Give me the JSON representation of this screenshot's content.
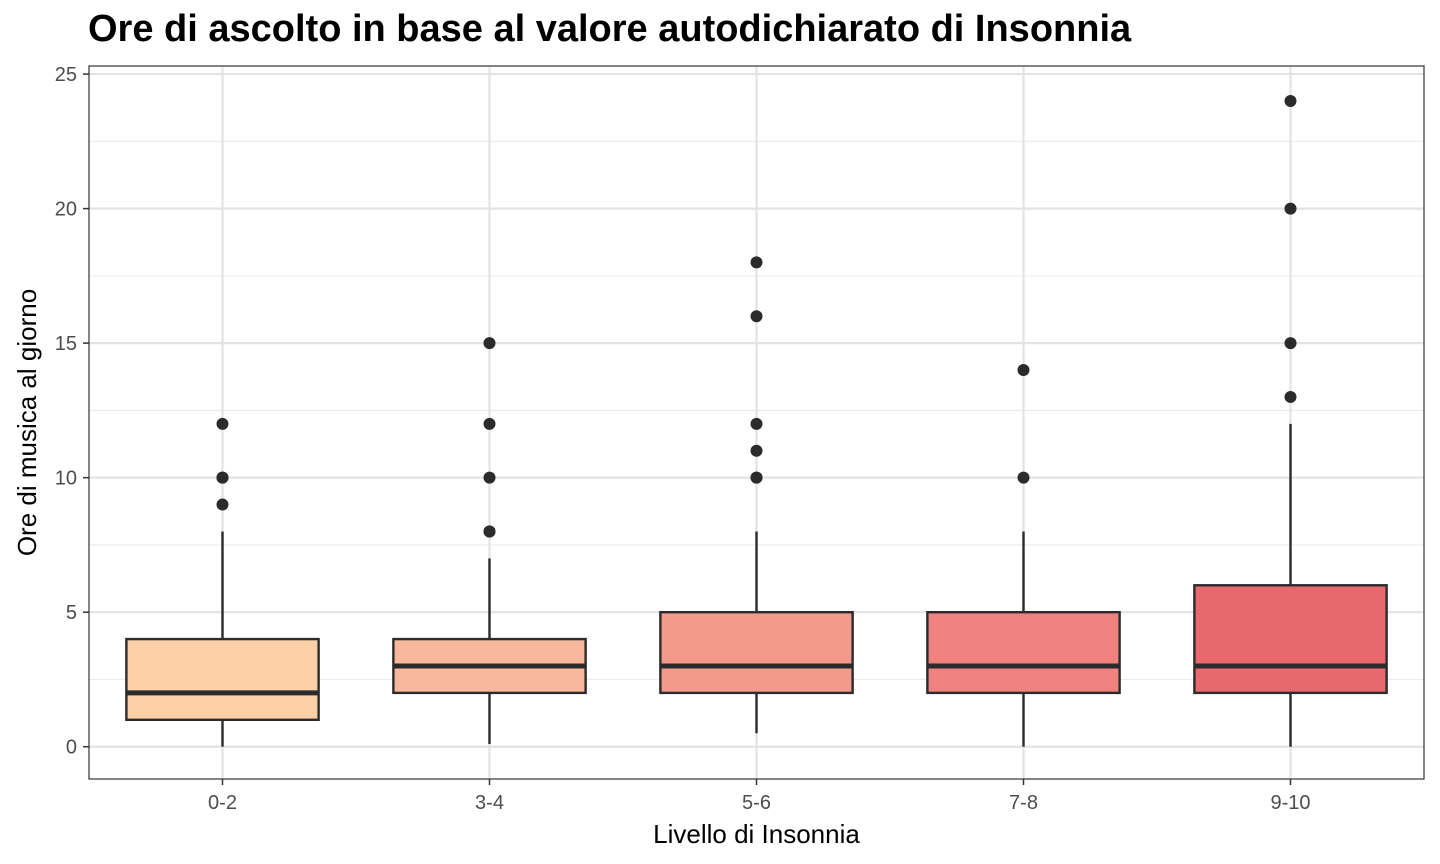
{
  "chart_data": {
    "type": "boxplot",
    "title": "Ore di ascolto in base al valore autodichiarato di Insonnia",
    "xlabel": "Livello di Insonnia",
    "ylabel": "Ore di musica al giorno",
    "ylim": [
      -1.2,
      25.3
    ],
    "y_ticks": [
      0,
      5,
      10,
      15,
      20,
      25
    ],
    "y_tick_labels": [
      "0",
      "5",
      "10",
      "15",
      "20",
      "25"
    ],
    "grid": true,
    "legend": "none",
    "categories": [
      "0-2",
      "3-4",
      "5-6",
      "7-8",
      "9-10"
    ],
    "boxes": [
      {
        "category": "0-2",
        "whisker_low": 0,
        "q1": 1,
        "median": 2,
        "q3": 4,
        "whisker_high": 8,
        "outliers": [
          9,
          10,
          10,
          12
        ],
        "color": "#FDD0A7"
      },
      {
        "category": "3-4",
        "whisker_low": 0.1,
        "q1": 2,
        "median": 3,
        "q3": 4,
        "whisker_high": 7,
        "outliers": [
          8,
          8,
          10,
          12,
          15
        ],
        "color": "#F8B89B"
      },
      {
        "category": "5-6",
        "whisker_low": 0.5,
        "q1": 2,
        "median": 3,
        "q3": 5,
        "whisker_high": 8,
        "outliers": [
          10,
          10,
          11,
          12,
          16,
          18
        ],
        "color": "#F39A8C"
      },
      {
        "category": "7-8",
        "whisker_low": 0,
        "q1": 2,
        "median": 3,
        "q3": 5,
        "whisker_high": 8,
        "outliers": [
          10,
          14
        ],
        "color": "#EF827E"
      },
      {
        "category": "9-10",
        "whisker_low": 0,
        "q1": 2,
        "median": 3,
        "q3": 6,
        "whisker_high": 12,
        "outliers": [
          13,
          15,
          20,
          24
        ],
        "color": "#E9686E"
      }
    ]
  }
}
